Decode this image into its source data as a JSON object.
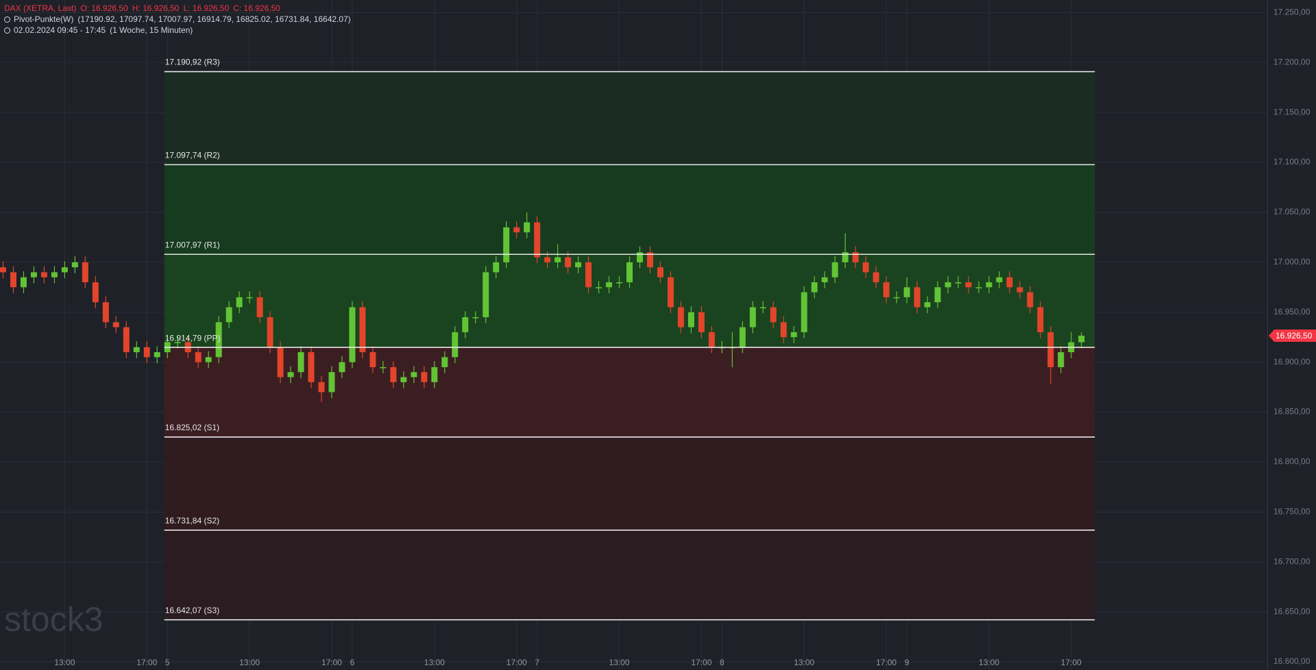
{
  "header": {
    "symbol": "DAX (XETRA, Last)",
    "ohlc": [
      "O: 16.926,50",
      "H: 16.926,50",
      "L: 16.926,50",
      "C: 16.926,50"
    ],
    "indicator": "Pivot-Punkte(W)",
    "indicator_values": "(17190.92,  17097.74,  17007.97,  16914.79,  16825.02,  16731.84,  16642.07)",
    "range": "02.02.2024 09:45 - 17:45",
    "interval": "(1 Woche, 15 Minuten)"
  },
  "watermark": "stock3",
  "chart_data": {
    "type": "candlestick",
    "up_color": "#62c435",
    "down_color": "#e2452b",
    "candles": [
      [
        16995,
        17001,
        16984,
        16990
      ],
      [
        16990,
        16996,
        16969,
        16975
      ],
      [
        16975,
        16991,
        16969,
        16985
      ],
      [
        16985,
        16996,
        16979,
        16990
      ],
      [
        16990,
        16996,
        16979,
        16985
      ],
      [
        16985,
        16996,
        16979,
        16990
      ],
      [
        16990,
        17001,
        16984,
        16995
      ],
      [
        16995,
        17006,
        16989,
        17000
      ],
      [
        17000,
        17006,
        16974,
        16980
      ],
      [
        16980,
        16986,
        16954,
        16960
      ],
      [
        16960,
        16966,
        16934,
        16940
      ],
      [
        16940,
        16946,
        16929,
        16935
      ],
      [
        16935,
        16941,
        16904,
        16910
      ],
      [
        16910,
        16921,
        16904,
        16915
      ],
      [
        16915,
        16921,
        16899,
        16905
      ],
      [
        16905,
        16916,
        16899,
        16910
      ],
      [
        16910,
        16926,
        16904,
        16920
      ],
      [
        16920,
        16926,
        16914,
        16920
      ],
      [
        16920,
        16926,
        16904,
        16910
      ],
      [
        16910,
        16916,
        16894,
        16900
      ],
      [
        16900,
        16911,
        16894,
        16905
      ],
      [
        16905,
        16946,
        16899,
        16940
      ],
      [
        16940,
        16961,
        16934,
        16955
      ],
      [
        16955,
        16971,
        16949,
        16965
      ],
      [
        16965,
        16971,
        16959,
        16965
      ],
      [
        16965,
        16971,
        16939,
        16945
      ],
      [
        16945,
        16951,
        16909,
        16915
      ],
      [
        16915,
        16921,
        16879,
        16885
      ],
      [
        16885,
        16896,
        16879,
        16890
      ],
      [
        16890,
        16916,
        16884,
        16910
      ],
      [
        16910,
        16916,
        16874,
        16880
      ],
      [
        16880,
        16886,
        16860,
        16870
      ],
      [
        16870,
        16896,
        16864,
        16890
      ],
      [
        16890,
        16906,
        16884,
        16900
      ],
      [
        16900,
        16961,
        16894,
        16955
      ],
      [
        16955,
        16961,
        16904,
        16910
      ],
      [
        16910,
        16916,
        16889,
        16895
      ],
      [
        16895,
        16901,
        16889,
        16895
      ],
      [
        16895,
        16901,
        16874,
        16880
      ],
      [
        16880,
        16891,
        16874,
        16885
      ],
      [
        16885,
        16896,
        16879,
        16890
      ],
      [
        16890,
        16896,
        16874,
        16880
      ],
      [
        16880,
        16901,
        16874,
        16895
      ],
      [
        16895,
        16911,
        16889,
        16905
      ],
      [
        16905,
        16936,
        16899,
        16930
      ],
      [
        16930,
        16951,
        16924,
        16945
      ],
      [
        16945,
        16951,
        16939,
        16945
      ],
      [
        16945,
        16996,
        16939,
        16990
      ],
      [
        16990,
        17006,
        16984,
        17000
      ],
      [
        17000,
        17041,
        16994,
        17035
      ],
      [
        17035,
        17041,
        17024,
        17030
      ],
      [
        17030,
        17050,
        17024,
        17040
      ],
      [
        17040,
        17046,
        16999,
        17005
      ],
      [
        17005,
        17011,
        16994,
        17000
      ],
      [
        17000,
        17018,
        16994,
        17005
      ],
      [
        17005,
        17011,
        16989,
        16995
      ],
      [
        16995,
        17006,
        16989,
        17000
      ],
      [
        17000,
        17006,
        16969,
        16975
      ],
      [
        16975,
        16981,
        16969,
        16975
      ],
      [
        16975,
        16986,
        16969,
        16980
      ],
      [
        16980,
        16986,
        16974,
        16980
      ],
      [
        16980,
        17006,
        16974,
        17000
      ],
      [
        17000,
        17016,
        16994,
        17010
      ],
      [
        17010,
        17016,
        16989,
        16995
      ],
      [
        16995,
        17001,
        16979,
        16985
      ],
      [
        16985,
        16991,
        16949,
        16955
      ],
      [
        16955,
        16961,
        16929,
        16935
      ],
      [
        16935,
        16956,
        16929,
        16950
      ],
      [
        16950,
        16956,
        16924,
        16930
      ],
      [
        16930,
        16936,
        16909,
        16915
      ],
      [
        16915,
        16921,
        16909,
        16915
      ],
      [
        16915,
        16930,
        16895,
        16915
      ],
      [
        16915,
        16941,
        16909,
        16935
      ],
      [
        16935,
        16961,
        16929,
        16955
      ],
      [
        16955,
        16961,
        16949,
        16955
      ],
      [
        16955,
        16961,
        16934,
        16940
      ],
      [
        16940,
        16946,
        16919,
        16925
      ],
      [
        16925,
        16936,
        16919,
        16930
      ],
      [
        16930,
        16976,
        16924,
        16970
      ],
      [
        16970,
        16986,
        16964,
        16980
      ],
      [
        16980,
        16991,
        16974,
        16985
      ],
      [
        16985,
        17006,
        16979,
        17000
      ],
      [
        17000,
        17029,
        16994,
        17010
      ],
      [
        17010,
        17016,
        16994,
        17000
      ],
      [
        17000,
        17006,
        16984,
        16990
      ],
      [
        16990,
        16996,
        16974,
        16980
      ],
      [
        16980,
        16986,
        16959,
        16965
      ],
      [
        16965,
        16971,
        16959,
        16965
      ],
      [
        16965,
        16985,
        16959,
        16975
      ],
      [
        16975,
        16981,
        16949,
        16955
      ],
      [
        16955,
        16966,
        16949,
        16960
      ],
      [
        16960,
        16981,
        16954,
        16975
      ],
      [
        16975,
        16986,
        16969,
        16980
      ],
      [
        16980,
        16986,
        16974,
        16980
      ],
      [
        16980,
        16986,
        16969,
        16975
      ],
      [
        16975,
        16981,
        16969,
        16975
      ],
      [
        16975,
        16986,
        16969,
        16980
      ],
      [
        16980,
        16991,
        16974,
        16985
      ],
      [
        16985,
        16991,
        16969,
        16975
      ],
      [
        16975,
        16981,
        16964,
        16970
      ],
      [
        16970,
        16976,
        16949,
        16955
      ],
      [
        16955,
        16961,
        16924,
        16930
      ],
      [
        16930,
        16936,
        16878,
        16895
      ],
      [
        16895,
        16916,
        16889,
        16910
      ],
      [
        16910,
        16930,
        16904,
        16920
      ],
      [
        16920,
        16930,
        16914,
        16926.5
      ]
    ],
    "pivot_levels": [
      {
        "value": 17190.92,
        "label": "17.190,92 (R3)"
      },
      {
        "value": 17097.74,
        "label": "17.097,74 (R2)"
      },
      {
        "value": 17007.97,
        "label": "17.007,97 (R1)"
      },
      {
        "value": 16914.79,
        "label": "16.914,79 (PP)"
      },
      {
        "value": 16825.02,
        "label": "16.825,02 (S1)"
      },
      {
        "value": 16731.84,
        "label": "16.731,84 (S2)"
      },
      {
        "value": 16642.07,
        "label": "16.642,07 (S3)"
      }
    ],
    "pivot_line_color": "#e8e8e8",
    "zone_colors": [
      "#1b2d22",
      "#173b1f",
      "#1a431f",
      "#3b1e22",
      "#301c20",
      "#2a1c20"
    ],
    "last_price": {
      "value": 16926.5,
      "label": "16.926,50"
    },
    "last_price_color": "#f23645",
    "xlim": [
      -0.3,
      123.1
    ],
    "xticks": [
      {
        "value": 6,
        "label": "13:00"
      },
      {
        "value": 14,
        "label": "17:00"
      },
      {
        "value": 16,
        "label": "5"
      },
      {
        "value": 24,
        "label": "13:00"
      },
      {
        "value": 32,
        "label": "17:00"
      },
      {
        "value": 34,
        "label": "6"
      },
      {
        "value": 42,
        "label": "13:00"
      },
      {
        "value": 50,
        "label": "17:00"
      },
      {
        "value": 52,
        "label": "7"
      },
      {
        "value": 60,
        "label": "13:00"
      },
      {
        "value": 68,
        "label": "17:00"
      },
      {
        "value": 70,
        "label": "8"
      },
      {
        "value": 78,
        "label": "13:00"
      },
      {
        "value": 86,
        "label": "17:00"
      },
      {
        "value": 88,
        "label": "9"
      },
      {
        "value": 96,
        "label": "13:00"
      },
      {
        "value": 104,
        "label": "17:00"
      }
    ],
    "ylim": [
      16600,
      17250
    ],
    "yticks": [
      {
        "value": 16600,
        "label": "16.600,00"
      },
      {
        "value": 16650,
        "label": "16.650,00"
      },
      {
        "value": 16700,
        "label": "16.700,00"
      },
      {
        "value": 16750,
        "label": "16.750,00"
      },
      {
        "value": 16800,
        "label": "16.800,00"
      },
      {
        "value": 16850,
        "label": "16.850,00"
      },
      {
        "value": 16900,
        "label": "16.900,00"
      },
      {
        "value": 16950,
        "label": "16.950,00"
      },
      {
        "value": 17000,
        "label": "17.000,00"
      },
      {
        "value": 17050,
        "label": "17.050,00"
      },
      {
        "value": 17100,
        "label": "17.100,00"
      },
      {
        "value": 17150,
        "label": "17.150,00"
      },
      {
        "value": 17200,
        "label": "17.200,00"
      },
      {
        "value": 17250,
        "label": "17.250,00"
      }
    ],
    "grid": true
  }
}
